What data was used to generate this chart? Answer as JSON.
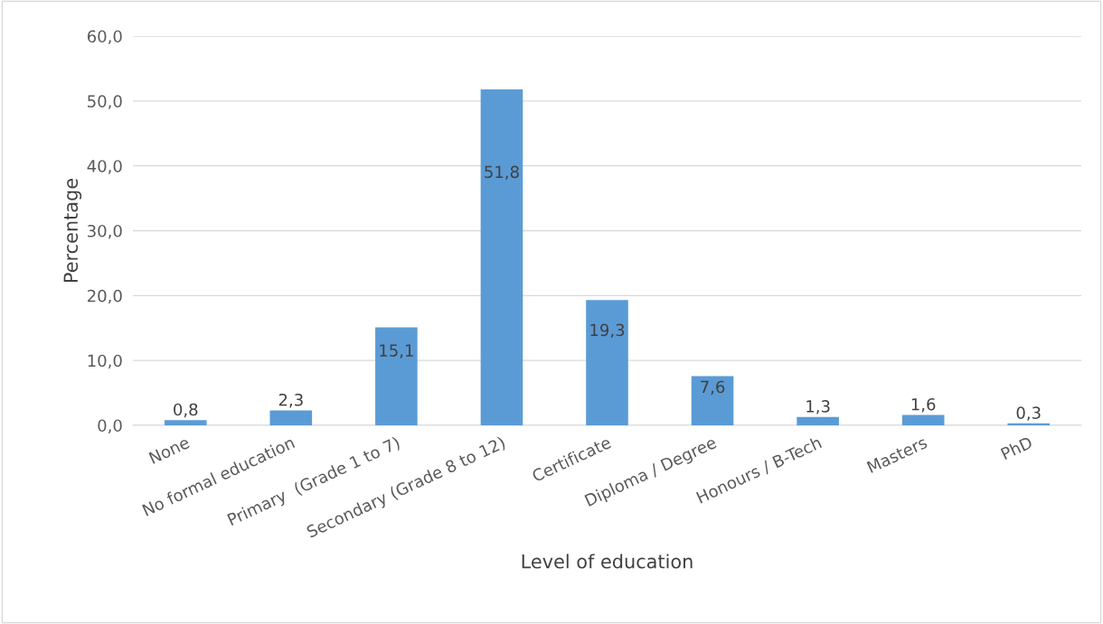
{
  "chart_data": {
    "type": "bar",
    "xlabel": "Level of education",
    "ylabel": "Percentage",
    "categories": [
      "None",
      "No formal education",
      "Primary  (Grade 1 to 7)",
      "Secondary (Grade 8 to 12)",
      "Certificate",
      "Diploma / Degree",
      "Honours / B-Tech",
      "Masters",
      "PhD"
    ],
    "values": [
      0.8,
      2.3,
      15.1,
      51.8,
      19.3,
      7.6,
      1.3,
      1.6,
      0.3
    ],
    "value_labels": [
      "0,8",
      "2,3",
      "15,1",
      "51,8",
      "19,3",
      "7,6",
      "1,3",
      "1,6",
      "0,3"
    ],
    "color": "#5b9bd5",
    "ylim": [
      0,
      60
    ],
    "yticks": [
      {
        "value": 0,
        "label": "0,0"
      },
      {
        "value": 10,
        "label": "10,0"
      },
      {
        "value": 20,
        "label": "20,0"
      },
      {
        "value": 30,
        "label": "30,0"
      },
      {
        "value": 40,
        "label": "40,0"
      },
      {
        "value": 50,
        "label": "50,0"
      },
      {
        "value": 60,
        "label": "60,0"
      }
    ],
    "grid": "y",
    "legend": false
  }
}
